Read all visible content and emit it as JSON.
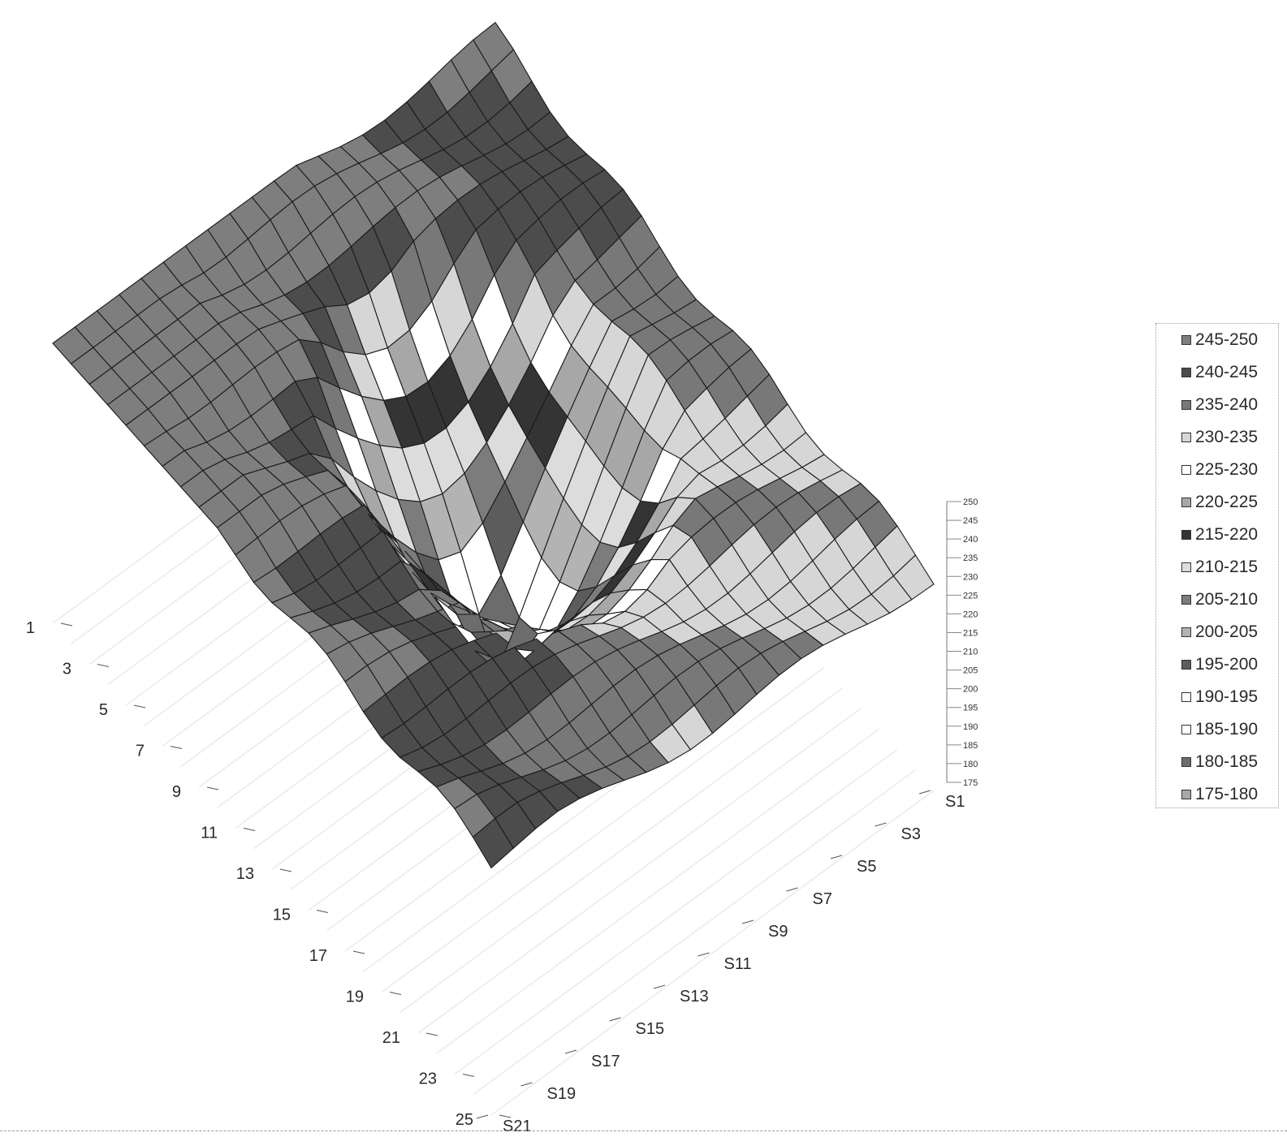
{
  "chart_data": {
    "type": "surface",
    "title": "",
    "z_axis": {
      "min": 175,
      "max": 250,
      "step": 5
    },
    "z_ticks": [
      "250",
      "245",
      "240",
      "235",
      "230",
      "225",
      "220",
      "215",
      "210",
      "205",
      "200",
      "195",
      "190",
      "185",
      "180",
      "175"
    ],
    "x_ticks": [
      "1",
      "3",
      "5",
      "7",
      "9",
      "11",
      "13",
      "15",
      "17",
      "19",
      "21",
      "23",
      "25"
    ],
    "y_ticks": [
      "S1",
      "S3",
      "S5",
      "S7",
      "S9",
      "S11",
      "S13",
      "S15",
      "S17",
      "S19",
      "S21"
    ],
    "legend": [
      {
        "label": "245-250",
        "color": "#7e7e7e"
      },
      {
        "label": "240-245",
        "color": "#4c4c4c"
      },
      {
        "label": "235-240",
        "color": "#787878"
      },
      {
        "label": "230-235",
        "color": "#d6d6d6"
      },
      {
        "label": "225-230",
        "color": "#ffffff"
      },
      {
        "label": "220-225",
        "color": "#a7a7a7"
      },
      {
        "label": "215-220",
        "color": "#343434"
      },
      {
        "label": "210-215",
        "color": "#dcdcdc"
      },
      {
        "label": "205-210",
        "color": "#7c7c7c"
      },
      {
        "label": "200-205",
        "color": "#b3b3b3"
      },
      {
        "label": "195-200",
        "color": "#5c5c5c"
      },
      {
        "label": "190-195",
        "color": "#ffffff"
      },
      {
        "label": "185-190",
        "color": "#ffffff"
      },
      {
        "label": "180-185",
        "color": "#6c6c6c"
      },
      {
        "label": "175-180",
        "color": "#a8a8a8"
      }
    ]
  }
}
